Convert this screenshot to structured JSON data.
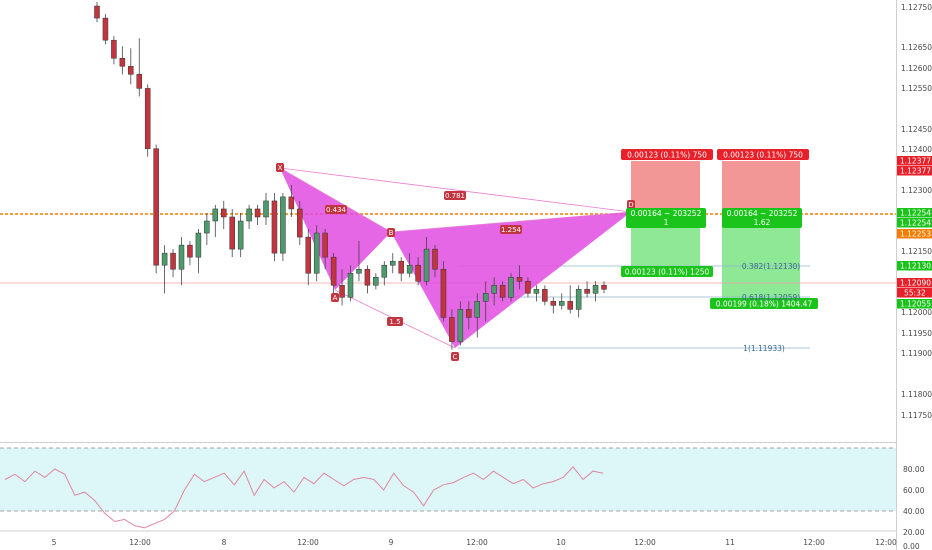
{
  "colors": {
    "up": "#4d9a6c",
    "down": "#c2353f",
    "pattern": "#e04ce0",
    "pattern_line": "#e77fd3",
    "orange_line": "#f57c00",
    "stop": "#f28b8b",
    "target": "#82e68a",
    "rsi_band": "#ddf6f7",
    "rsi_line": "#e087a0",
    "red_tag": "#e8202a",
    "green_tag": "#1bc41b",
    "fib": "#3b6a8a"
  },
  "price_axis": {
    "ticks": [
      "1.12750",
      "1.12650",
      "1.12600",
      "1.12550",
      "1.12450",
      "1.12400",
      "1.12300",
      "1.12150",
      "1.12000",
      "1.11950",
      "1.11900",
      "1.11800",
      "1.11750"
    ],
    "tags": [
      {
        "text": "1.12377",
        "color": "#e8202a"
      },
      {
        "text": "1.12377",
        "color": "#e8202a"
      },
      {
        "text": "1.12254",
        "color": "#1bc41b"
      },
      {
        "text": "1.12254",
        "color": "#1bc41b"
      },
      {
        "text": "1.12253",
        "color": "#f57c00"
      },
      {
        "text": "1.12130",
        "color": "#1bc41b"
      },
      {
        "text": "1.12090",
        "color": "#e8202a"
      },
      {
        "text": "55:32",
        "color": "#e8202a"
      },
      {
        "text": "1.12055",
        "color": "#1bc41b"
      }
    ]
  },
  "rsi_axis": {
    "ticks": [
      "80.00",
      "60.00",
      "40.00",
      "20.00",
      "0.00"
    ]
  },
  "time_axis": {
    "ticks": [
      "5",
      "12:00",
      "8",
      "12:00",
      "9",
      "12:00",
      "10",
      "12:00",
      "11",
      "12:00",
      "12:00"
    ]
  },
  "pattern_points": [
    "X",
    "A",
    "B",
    "C",
    "D"
  ],
  "ratios": [
    "0.434",
    "0.781",
    "1.254",
    "1.5"
  ],
  "positions": [
    {
      "stop_label": "0.00123 (0.11%) 750",
      "mid_line1": "0.00164 ~ 203252",
      "mid_line2": "1",
      "target_label": "0.00123 (0.11%) 1250"
    },
    {
      "stop_label": "0.00123 (0.11%) 750",
      "mid_line1": "0.00164 ~ 203252",
      "mid_line2": "1.62",
      "target_label": "0.00199 (0.18%) 1404.47"
    }
  ],
  "fib_labels": [
    "0.382(1.12130)",
    "0.618(1.12059)",
    "1(1.11933)"
  ],
  "chart_data": {
    "type": "candlestick",
    "title": "",
    "xlabel": "",
    "ylabel": "",
    "ylim": [
      1.1171,
      1.1281
    ],
    "candles": [
      [
        1.12795,
        1.12805,
        1.12755,
        1.12765
      ],
      [
        1.12765,
        1.12775,
        1.127,
        1.1271
      ],
      [
        1.1271,
        1.1272,
        1.1265,
        1.12665
      ],
      [
        1.12665,
        1.12695,
        1.12625,
        1.12645
      ],
      [
        1.12645,
        1.1269,
        1.126,
        1.12625
      ],
      [
        1.12625,
        1.12715,
        1.1257,
        1.1259
      ],
      [
        1.1259,
        1.126,
        1.1242,
        1.1244
      ],
      [
        1.1244,
        1.1245,
        1.1213,
        1.1215
      ],
      [
        1.1215,
        1.122,
        1.1208,
        1.1218
      ],
      [
        1.1218,
        1.1219,
        1.1212,
        1.1214
      ],
      [
        1.1214,
        1.1222,
        1.121,
        1.122
      ],
      [
        1.122,
        1.1221,
        1.1215,
        1.1217
      ],
      [
        1.1217,
        1.1224,
        1.1213,
        1.1223
      ],
      [
        1.1223,
        1.1228,
        1.122,
        1.1226
      ],
      [
        1.1226,
        1.123,
        1.1222,
        1.1229
      ],
      [
        1.1229,
        1.1231,
        1.1224,
        1.1227
      ],
      [
        1.1227,
        1.1229,
        1.1217,
        1.1219
      ],
      [
        1.1219,
        1.1228,
        1.1217,
        1.1226
      ],
      [
        1.1226,
        1.123,
        1.1224,
        1.1229
      ],
      [
        1.1229,
        1.123,
        1.1225,
        1.1227
      ],
      [
        1.1227,
        1.1233,
        1.1225,
        1.1231
      ],
      [
        1.1231,
        1.1233,
        1.1216,
        1.1218
      ],
      [
        1.1218,
        1.1233,
        1.1216,
        1.1232
      ],
      [
        1.1232,
        1.1235,
        1.1227,
        1.1229
      ],
      [
        1.1229,
        1.1231,
        1.122,
        1.1222
      ],
      [
        1.1222,
        1.1224,
        1.121,
        1.1213
      ],
      [
        1.1213,
        1.1225,
        1.1211,
        1.1223
      ],
      [
        1.1223,
        1.1224,
        1.1214,
        1.1217
      ],
      [
        1.1217,
        1.1218,
        1.1208,
        1.121
      ],
      [
        1.121,
        1.1214,
        1.1205,
        1.1207
      ],
      [
        1.1207,
        1.1215,
        1.1206,
        1.1213
      ],
      [
        1.1213,
        1.1221,
        1.1211,
        1.1214
      ],
      [
        1.1214,
        1.1215,
        1.1208,
        1.121
      ],
      [
        1.121,
        1.1213,
        1.1209,
        1.1212
      ],
      [
        1.1212,
        1.1216,
        1.121,
        1.1215
      ],
      [
        1.1215,
        1.1218,
        1.1213,
        1.1216
      ],
      [
        1.1216,
        1.1217,
        1.1211,
        1.1213
      ],
      [
        1.1213,
        1.1218,
        1.1212,
        1.1215
      ],
      [
        1.1215,
        1.1217,
        1.121,
        1.1211
      ],
      [
        1.1211,
        1.1222,
        1.121,
        1.1219
      ],
      [
        1.1219,
        1.122,
        1.1212,
        1.1214
      ],
      [
        1.1214,
        1.1216,
        1.1201,
        1.1202
      ],
      [
        1.1202,
        1.1204,
        1.1194,
        1.1196
      ],
      [
        1.1196,
        1.1206,
        1.1195,
        1.1204
      ],
      [
        1.1204,
        1.1206,
        1.1199,
        1.1202
      ],
      [
        1.1202,
        1.1208,
        1.1197,
        1.1206
      ],
      [
        1.1206,
        1.1211,
        1.1201,
        1.1208
      ],
      [
        1.1208,
        1.1212,
        1.1205,
        1.121
      ],
      [
        1.121,
        1.1211,
        1.1206,
        1.1207
      ],
      [
        1.1207,
        1.1213,
        1.1206,
        1.1212
      ],
      [
        1.1212,
        1.1215,
        1.1209,
        1.1211
      ],
      [
        1.1211,
        1.1212,
        1.1207,
        1.1208
      ],
      [
        1.1208,
        1.121,
        1.1206,
        1.1209
      ],
      [
        1.1209,
        1.121,
        1.1205,
        1.1206
      ],
      [
        1.1206,
        1.1207,
        1.1203,
        1.1205
      ],
      [
        1.1205,
        1.1208,
        1.1204,
        1.1206
      ],
      [
        1.1206,
        1.121,
        1.1203,
        1.1204
      ],
      [
        1.1204,
        1.121,
        1.1202,
        1.1209
      ],
      [
        1.1209,
        1.1211,
        1.1207,
        1.1208
      ],
      [
        1.1208,
        1.1211,
        1.1206,
        1.121
      ],
      [
        1.121,
        1.1211,
        1.1208,
        1.1209
      ]
    ],
    "rsi": [
      50,
      55,
      48,
      58,
      52,
      60,
      55,
      35,
      38,
      30,
      18,
      10,
      12,
      6,
      4,
      8,
      12,
      20,
      40,
      55,
      48,
      52,
      56,
      45,
      58,
      35,
      50,
      42,
      48,
      38,
      52,
      46,
      56,
      50,
      44,
      50,
      52,
      50,
      40,
      56,
      44,
      38,
      25,
      40,
      45,
      47,
      52,
      56,
      50,
      58,
      52,
      46,
      50,
      42,
      46,
      48,
      52,
      62,
      50,
      58,
      56
    ]
  }
}
